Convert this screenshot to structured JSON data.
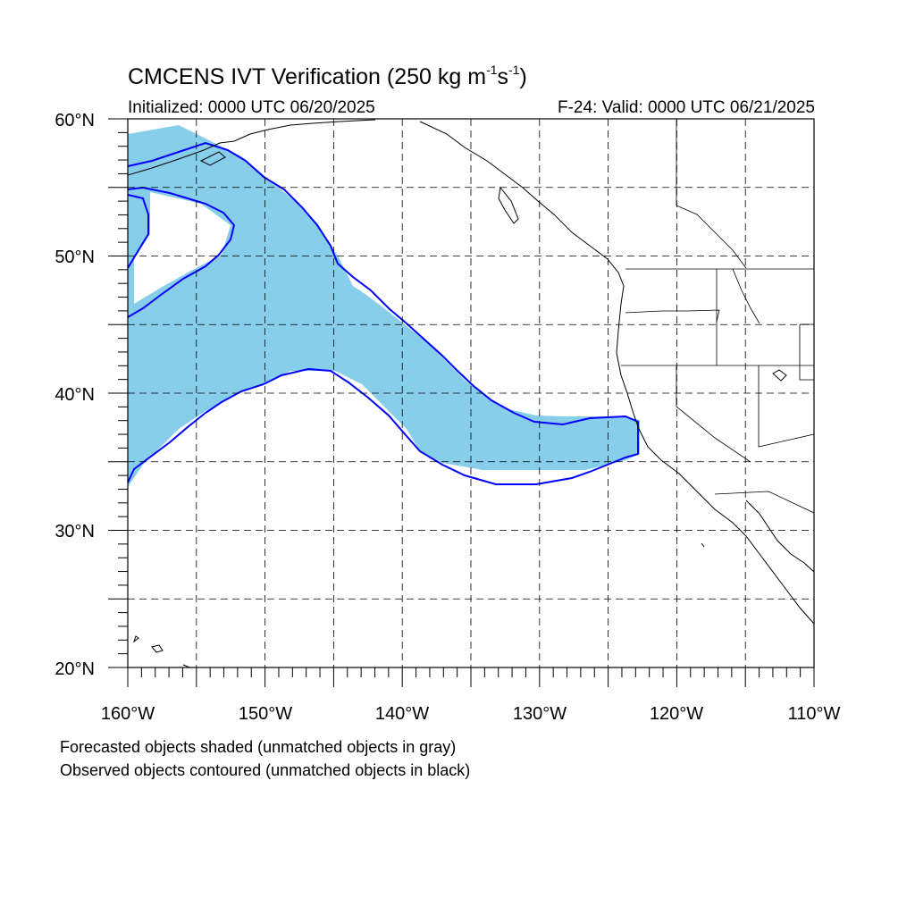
{
  "title": {
    "prefix": "CMCENS IVT Verification (250 kg m",
    "exp1": "-1",
    "mid": "s",
    "exp2": "-1",
    "suffix": ")"
  },
  "initialized": "Initialized: 0000 UTC 06/20/2025",
  "valid": "F-24: Valid: 0000 UTC 06/21/2025",
  "notes": [
    "Forecasted objects shaded (unmatched objects in gray)",
    "Observed objects contoured (unmatched objects in black)"
  ],
  "map": {
    "lon_range": [
      -160,
      -110
    ],
    "lat_range": [
      20,
      60
    ],
    "lon_ticks": [
      "160°W",
      "150°W",
      "140°W",
      "130°W",
      "120°W",
      "110°W"
    ],
    "lat_ticks": [
      "60°N",
      "50°N",
      "40°N",
      "30°N",
      "20°N"
    ],
    "gridlines": "dashed every 5 degrees",
    "colors": {
      "forecast_fill": "#87ceeb",
      "observed_contour": "#0000ff",
      "coastline": "#000000",
      "grid": "#000000"
    }
  },
  "icons": {
    "forecast_object": "shaded-region",
    "observed_object": "contour-outline"
  }
}
